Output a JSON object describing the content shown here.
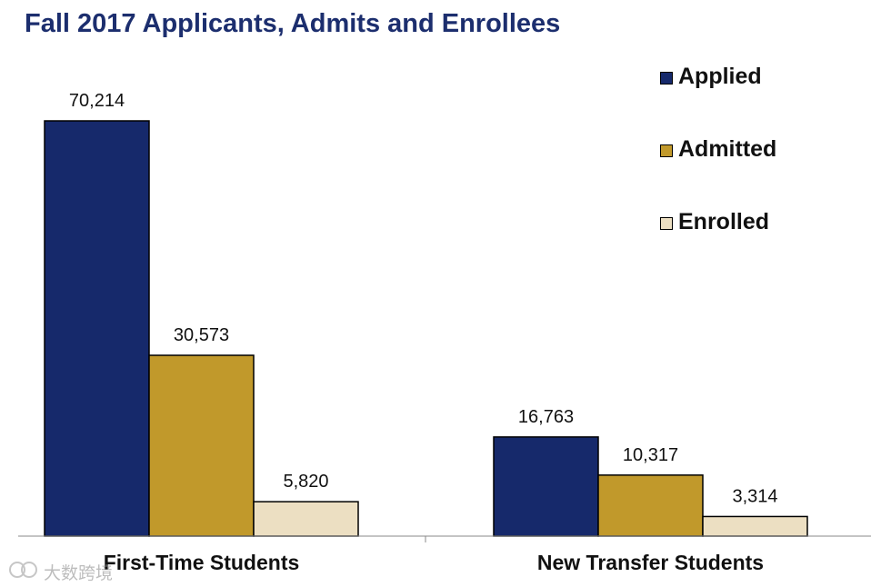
{
  "chart_data": {
    "type": "bar",
    "title": "Fall 2017 Applicants, Admits and Enrollees",
    "categories": [
      "First-Time Students",
      "New Transfer Students"
    ],
    "series": [
      {
        "name": "Applied",
        "color": "#16296b",
        "values": [
          70214,
          16763
        ],
        "labels": [
          "70,214",
          "16,763"
        ]
      },
      {
        "name": "Admitted",
        "color": "#c1992b",
        "values": [
          30573,
          10317
        ],
        "labels": [
          "30,573",
          "10,317"
        ]
      },
      {
        "name": "Enrolled",
        "color": "#ecdfc2",
        "values": [
          5820,
          3314
        ],
        "labels": [
          "5,820",
          "3,314"
        ]
      }
    ],
    "xlabel": "",
    "ylabel": "",
    "ylim": [
      0,
      80000
    ],
    "grid": false,
    "legend_position": "top-right"
  },
  "watermark": {
    "text": "大数跨境"
  }
}
